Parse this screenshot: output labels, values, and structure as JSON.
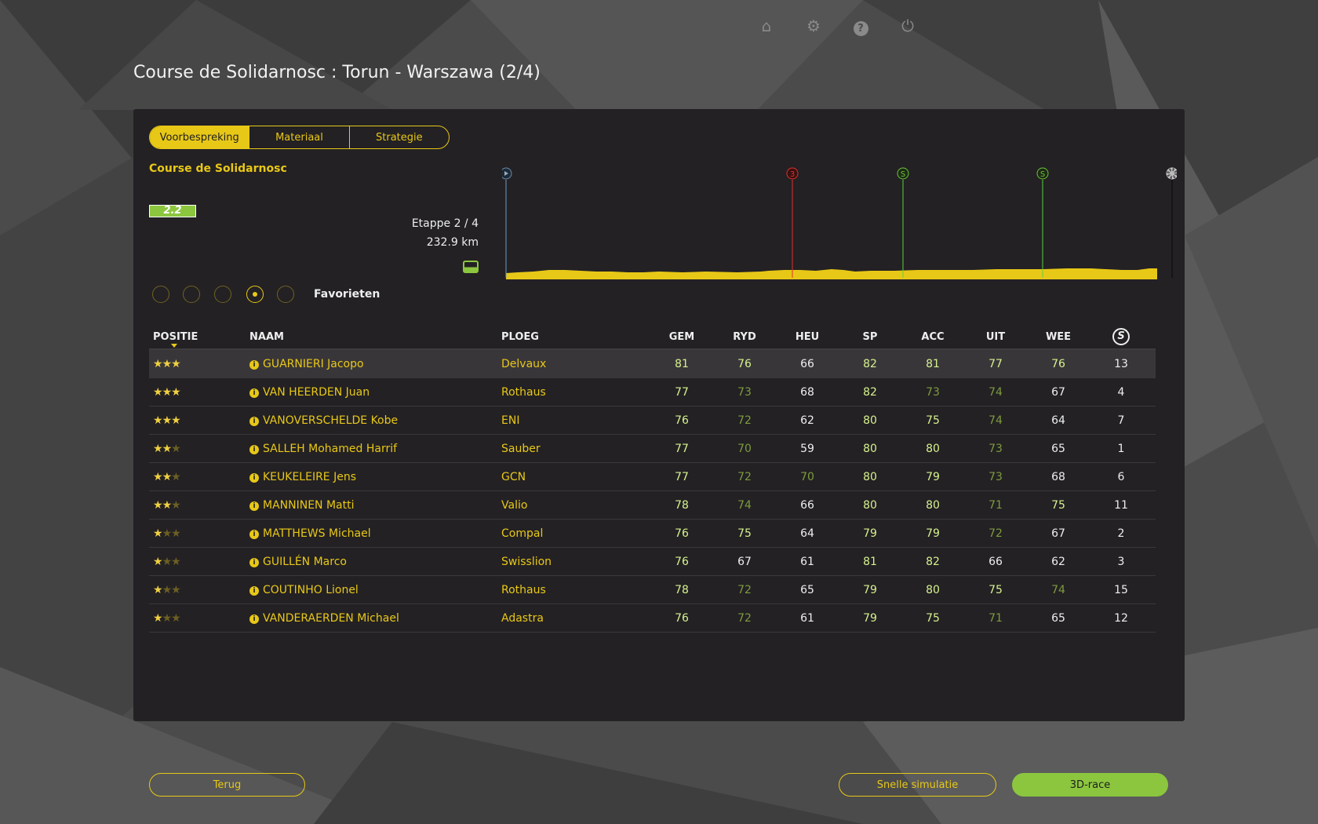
{
  "header": {
    "title": "Course de Solidarnosc : Torun - Warszawa (2/4)",
    "icons": [
      "home-icon",
      "gear-icon",
      "help-icon",
      "power-icon"
    ]
  },
  "tabs": [
    {
      "label": "Voorbespreking",
      "active": true
    },
    {
      "label": "Materiaal"
    },
    {
      "label": "Strategie"
    }
  ],
  "race": {
    "name": "Course de Solidarnosc",
    "category": "2.2",
    "stage": "Etappe 2 / 4",
    "distance": "232.9 km",
    "terrain_icon": "flat-terrain-icon"
  },
  "filters": {
    "selected_index": 3,
    "label": "Favorieten"
  },
  "profile": {
    "markers": [
      {
        "type": "start",
        "label": "▶",
        "color": "#6a8aa8"
      },
      {
        "type": "climb",
        "label": "3",
        "color": "#e0302a"
      },
      {
        "type": "sprint",
        "label": "S",
        "color": "#6ac43c"
      },
      {
        "type": "sprint",
        "label": "S",
        "color": "#6ac43c"
      },
      {
        "type": "finish",
        "label": "",
        "color": "#999999"
      }
    ]
  },
  "table": {
    "columns": [
      "POSITIE",
      "NAAM",
      "PLOEG",
      "GEM",
      "RYD",
      "HEU",
      "SP",
      "ACC",
      "UIT",
      "WEE"
    ],
    "last_column_icon": "S",
    "rows": [
      {
        "stars": 3,
        "name": "GUARNIERI Jacopo",
        "team": "Delvaux",
        "stats": [
          81,
          76,
          66,
          82,
          81,
          77,
          76
        ],
        "s": "13"
      },
      {
        "stars": 3,
        "name": "VAN HEERDEN Juan",
        "team": "Rothaus",
        "stats": [
          77,
          73,
          68,
          82,
          73,
          74,
          67
        ],
        "s": "4"
      },
      {
        "stars": 3,
        "name": "VANOVERSCHELDE Kobe",
        "team": "ENI",
        "stats": [
          76,
          72,
          62,
          80,
          75,
          74,
          64
        ],
        "s": "7"
      },
      {
        "stars": 2,
        "name": "SALLEH Mohamed Harrif",
        "team": "Sauber",
        "stats": [
          77,
          70,
          59,
          80,
          80,
          73,
          65
        ],
        "s": "1"
      },
      {
        "stars": 2,
        "name": "KEUKELEIRE Jens",
        "team": "GCN",
        "stats": [
          77,
          72,
          70,
          80,
          79,
          73,
          68
        ],
        "s": "6"
      },
      {
        "stars": 2,
        "name": "MANNINEN Matti",
        "team": "Valio",
        "stats": [
          78,
          74,
          66,
          80,
          80,
          71,
          75
        ],
        "s": "11"
      },
      {
        "stars": 1,
        "name": "MATTHEWS Michael",
        "team": "Compal",
        "stats": [
          76,
          75,
          64,
          79,
          79,
          72,
          67
        ],
        "s": "2"
      },
      {
        "stars": 1,
        "name": "GUILLÉN Marco",
        "team": "Swisslion",
        "stats": [
          76,
          67,
          61,
          81,
          82,
          66,
          62
        ],
        "s": "3"
      },
      {
        "stars": 1,
        "name": "COUTINHO Lionel",
        "team": "Rothaus",
        "stats": [
          78,
          72,
          65,
          79,
          80,
          75,
          74
        ],
        "s": "15"
      },
      {
        "stars": 1,
        "name": "VANDERAERDEN Michael",
        "team": "Adastra",
        "stats": [
          76,
          72,
          61,
          79,
          75,
          71,
          65
        ],
        "s": "12"
      }
    ]
  },
  "footer": {
    "back": "Terug",
    "quick_sim": "Snelle simulatie",
    "race3d": "3D-race"
  }
}
